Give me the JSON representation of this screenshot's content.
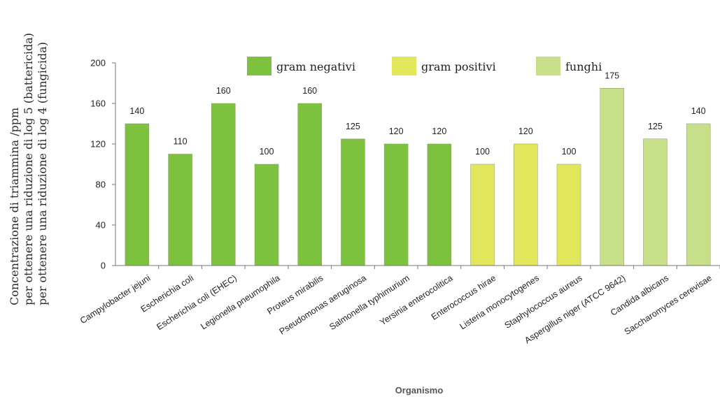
{
  "chart_data": {
    "type": "bar",
    "ylabel": [
      "Concentrazione di triammina /ppm",
      "per ottenere una riduzione di log 5 (battericida)",
      "per ottenere una riduzione di log 4 (fungicida)"
    ],
    "xlabel": "Organismo",
    "ylim": [
      0,
      200
    ],
    "yticks": [
      0,
      40,
      80,
      120,
      160,
      200
    ],
    "grid": false,
    "legend_position": "top",
    "categories": [
      "Campylobacter jejuni",
      "Escherichia coli",
      "Escherichia coli (EHEC)",
      "Legionella pneumophila",
      "Proteus mirabilis",
      "Pseudomonas aeruginosa",
      "Salmonella typhimurium",
      "Yersinia enterocolitica",
      "Enterococcus hirae",
      "Listeria monocytogenes",
      "Staphylococcus aureus",
      "Aspergillus niger (ATCC 9642)",
      "Candida albicans",
      "Saccharomyces cerevisae"
    ],
    "values": [
      140,
      110,
      160,
      100,
      160,
      125,
      120,
      120,
      100,
      120,
      100,
      175,
      125,
      140
    ],
    "groups": [
      0,
      0,
      0,
      0,
      0,
      0,
      0,
      0,
      1,
      1,
      1,
      2,
      2,
      2
    ],
    "legend": [
      {
        "name": "gram negativi",
        "color": "#7dc23f"
      },
      {
        "name": "gram positivi",
        "color": "#e2e65a"
      },
      {
        "name": "funghi",
        "color": "#c6df88"
      }
    ]
  }
}
